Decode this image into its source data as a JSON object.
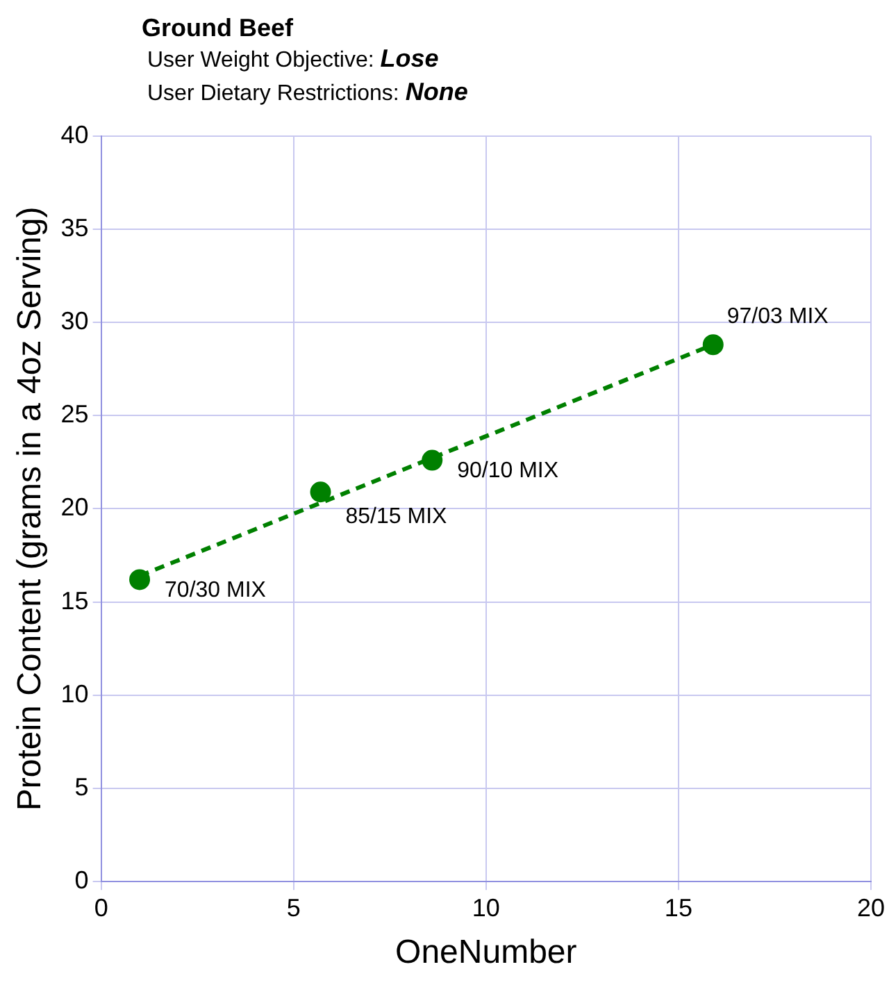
{
  "chart_data": {
    "type": "scatter",
    "title": "Ground Beef",
    "subtitle": "User Weight Objective: Lose\nUser Dietary Restrictions: None",
    "xlabel": "OneNumber",
    "ylabel": "Protein Content (grams in a 4oz Serving)",
    "series": [
      {
        "type": "scatter",
        "color": "#008000",
        "x": [
          1.0,
          5.7,
          8.6,
          15.9
        ],
        "values": [
          16.2,
          20.9,
          22.6,
          28.8
        ],
        "marker": "circle"
      },
      {
        "type": "line",
        "color": "#008000",
        "x": [
          1.0,
          15.9
        ],
        "values": [
          16.4,
          28.8
        ],
        "marker": "none",
        "line_style": "dashed"
      }
    ],
    "annotations": [
      {
        "text": "70/30 MIX",
        "x": 1.0,
        "y": 16.2
      },
      {
        "text": "85/15 MIX",
        "x": 5.7,
        "y": 20.9
      },
      {
        "text": "90/10 MIX",
        "x": 8.6,
        "y": 22.6
      },
      {
        "text": "97/03 MIX",
        "x": 15.9,
        "y": 28.8
      }
    ],
    "xlim": [
      0,
      20
    ],
    "xticks": [
      0,
      5,
      10,
      15,
      20
    ],
    "ylim": [
      0,
      40
    ],
    "yticks": [
      0,
      5,
      10,
      15,
      20,
      25,
      30,
      35,
      40
    ],
    "grid": true,
    "legend": false
  }
}
